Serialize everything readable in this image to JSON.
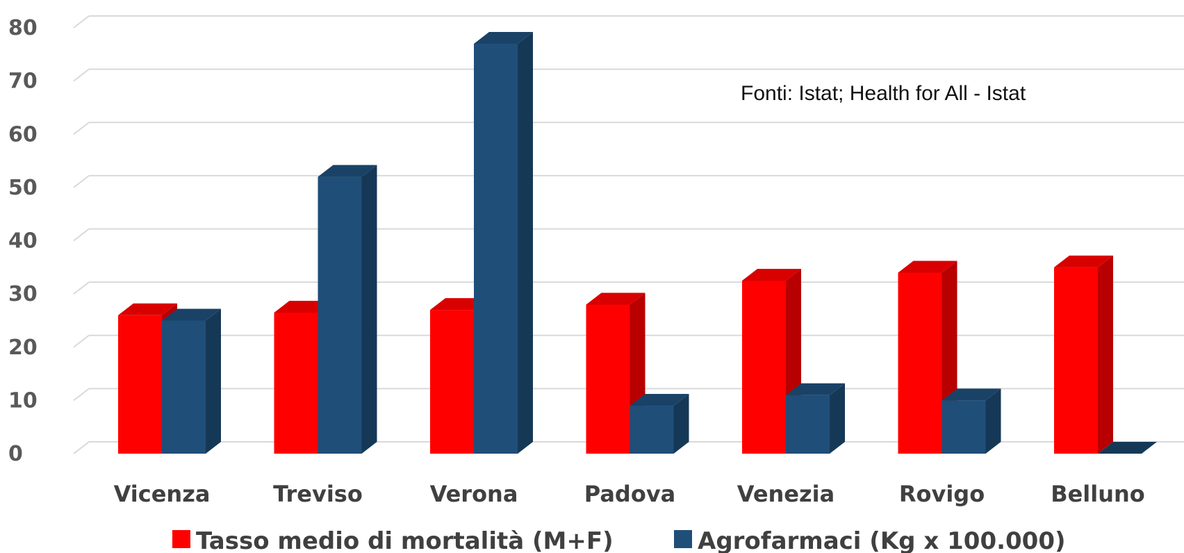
{
  "chart_data": {
    "type": "bar",
    "categories": [
      "Vicenza",
      "Treviso",
      "Verona",
      "Padova",
      "Venezia",
      "Rovigo",
      "Belluno"
    ],
    "series": [
      {
        "name": "Tasso medio di mortalità (M+F)",
        "values": [
          26,
          26.5,
          27,
          28,
          32.5,
          34,
          35
        ],
        "color": "#ff0000"
      },
      {
        "name": "Agrofarmaci (Kg x 100.000)",
        "values": [
          25,
          52,
          77,
          9,
          11,
          10,
          0
        ],
        "color": "#1f4e79"
      }
    ],
    "yticks": [
      "0",
      "10",
      "20",
      "30",
      "40",
      "50",
      "60",
      "70",
      "80"
    ],
    "ylim": [
      0,
      80
    ],
    "annotation": "Fonti: Istat; Health for All - Istat",
    "legend_position": "bottom",
    "grid": true,
    "style": "3d-clustered-column"
  }
}
